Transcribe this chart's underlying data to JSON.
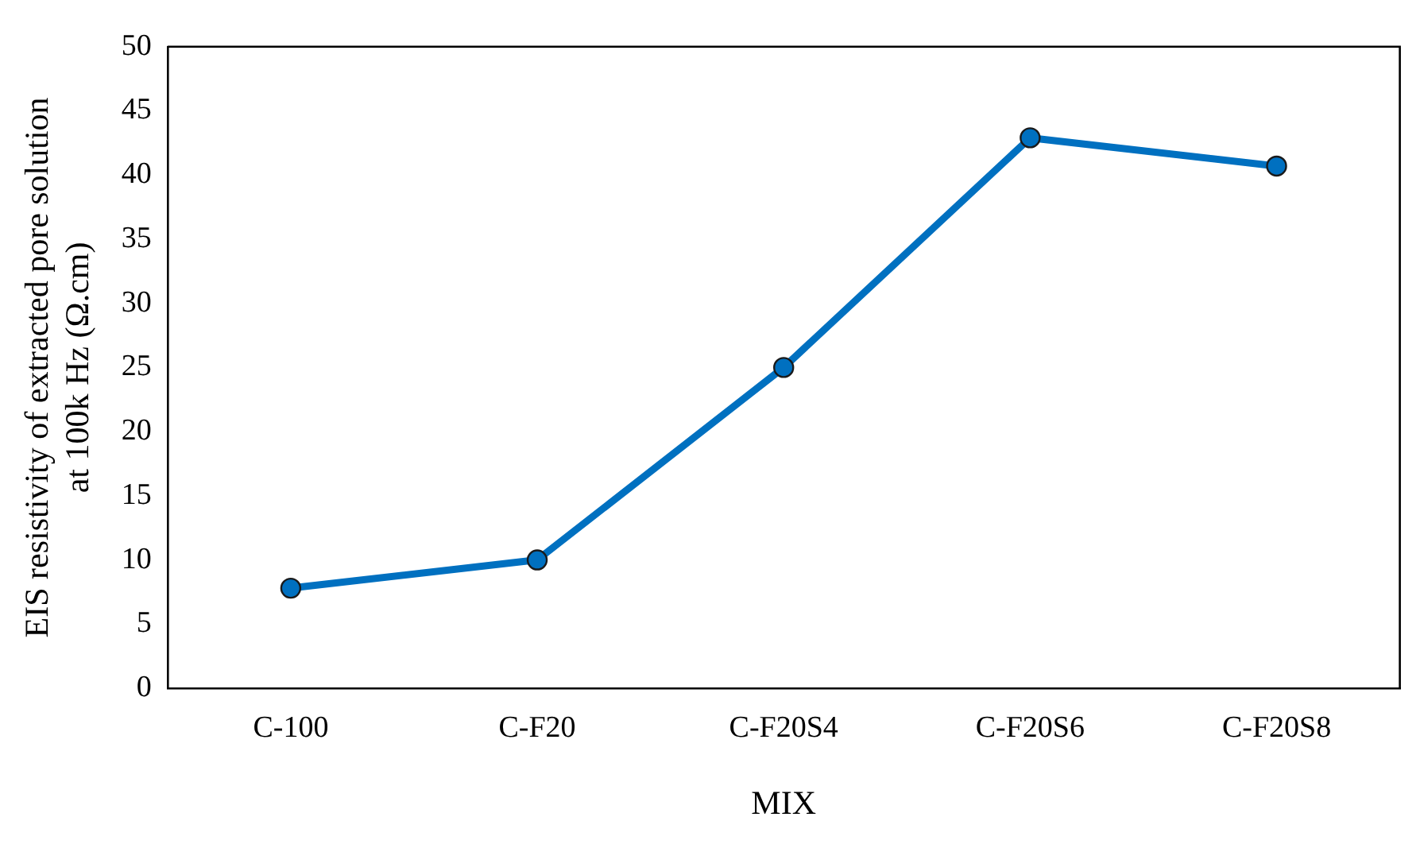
{
  "chart_data": {
    "type": "line",
    "xlabel": "MIX",
    "ylabel": "EIS resistivity of extracted pore solution\nat 100k Hz (Ω.cm)",
    "categories": [
      "C-100",
      "C-F20",
      "C-F20S4",
      "C-F20S6",
      "C-F20S8"
    ],
    "series": [
      {
        "color": "#0070c0",
        "values": [
          7.8,
          10,
          25,
          42.9,
          40.7
        ]
      }
    ],
    "ylim": [
      0,
      50
    ],
    "yticks": [
      0,
      5,
      10,
      15,
      20,
      25,
      30,
      35,
      40,
      45,
      50
    ],
    "grid": false,
    "legend": false,
    "marker": "circle",
    "line_style": "solid"
  }
}
